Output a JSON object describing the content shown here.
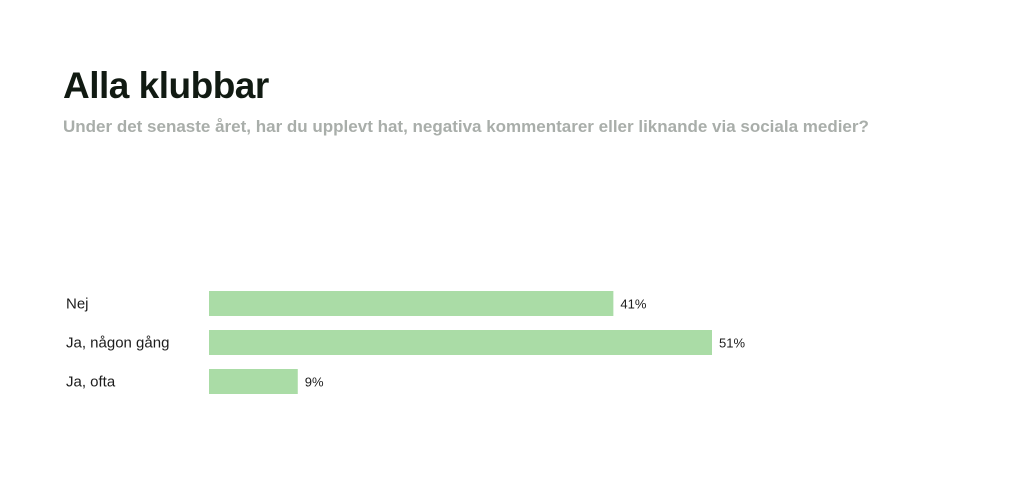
{
  "title": "Alla klubbar",
  "subtitle": "Under det senaste året, har du upplevt hat, negativa kommentarer eller liknande via sociala medier?",
  "colors": {
    "bar": "#aadca6",
    "title": "#111a12",
    "subtitle": "#a9aeaa",
    "text": "#1c1c1c"
  },
  "chart_data": {
    "type": "bar",
    "orientation": "horizontal",
    "title": "Alla klubbar",
    "subtitle": "Under det senaste året, har du upplevt hat, negativa kommentarer eller liknande via sociala medier?",
    "categories": [
      "Nej",
      "Ja, någon gång",
      "Ja, ofta"
    ],
    "values": [
      41,
      51,
      9
    ],
    "value_labels": [
      "41%",
      "51%",
      "9%"
    ],
    "unit": "%",
    "xlim": [
      0,
      51
    ],
    "grid": false,
    "legend": "none"
  }
}
